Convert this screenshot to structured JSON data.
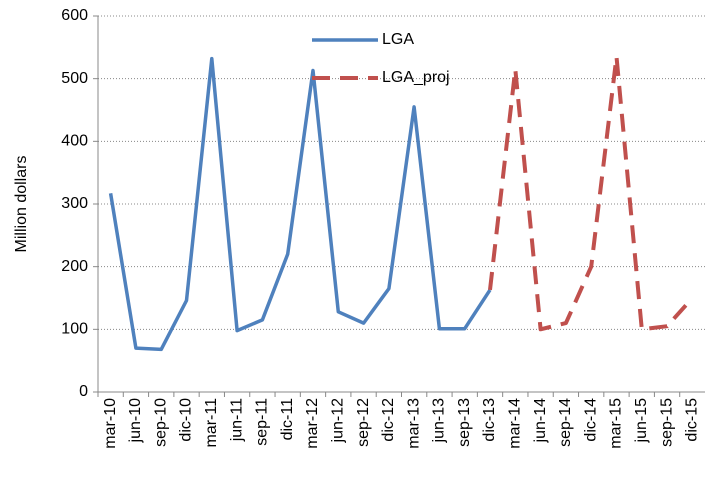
{
  "chart_data": {
    "type": "line",
    "y_label": "Million dollars",
    "categories": [
      "mar-10",
      "jun-10",
      "sep-10",
      "dic-10",
      "mar-11",
      "jun-11",
      "sep-11",
      "dic-11",
      "mar-12",
      "jun-12",
      "sep-12",
      "dic-12",
      "mar-13",
      "jun-13",
      "sep-13",
      "dic-13",
      "mar-14",
      "jun-14",
      "sep-14",
      "dic-14",
      "mar-15",
      "jun-15",
      "sep-15",
      "dic-15"
    ],
    "series": [
      {
        "name": "LGA",
        "color": "#4f81bd",
        "dashed": false,
        "values": [
          317,
          70,
          68,
          146,
          532,
          98,
          115,
          220,
          513,
          128,
          110,
          165,
          455,
          101,
          101,
          163,
          null,
          null,
          null,
          null,
          null,
          null,
          null,
          null
        ]
      },
      {
        "name": "LGA_proj",
        "color": "#c0504d",
        "dashed": true,
        "values": [
          null,
          null,
          null,
          null,
          null,
          null,
          null,
          null,
          null,
          null,
          null,
          null,
          null,
          null,
          null,
          163,
          515,
          100,
          110,
          200,
          535,
          100,
          105,
          150
        ]
      }
    ],
    "ylim": [
      0,
      600
    ],
    "yticks": [
      0,
      100,
      200,
      300,
      400,
      500,
      600
    ],
    "grid": true,
    "legend": "top"
  }
}
